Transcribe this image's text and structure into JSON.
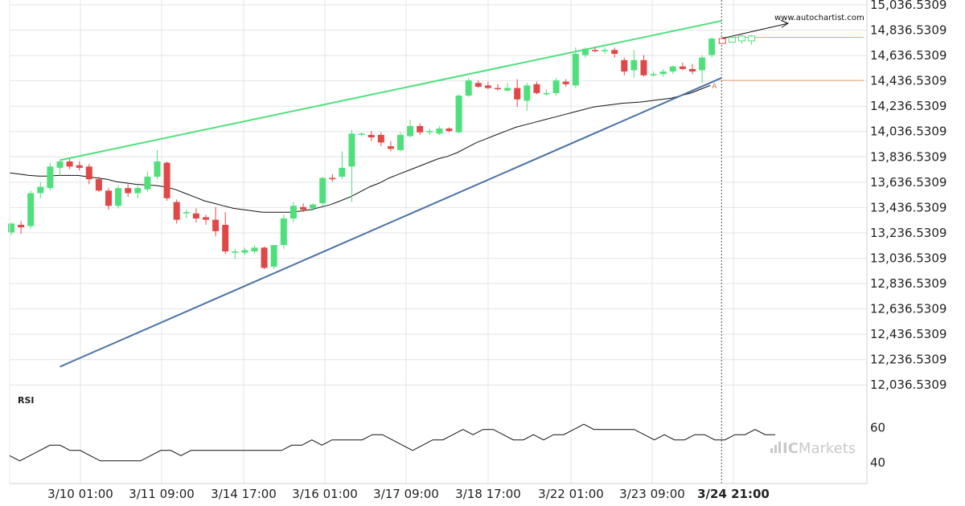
{
  "watermark": "www.autochartist.com",
  "brand": {
    "prefix": "IC",
    "suffix": "Markets"
  },
  "colors": {
    "up": "#4fe07c",
    "down": "#e04848",
    "resistance": "#4fe07c",
    "support": "#4a72a8",
    "ma": "#111111",
    "level": "#f0a070",
    "grid": "#e4e4e4"
  },
  "chart_data": [
    {
      "type": "candlestick",
      "title": "",
      "ylabel": "",
      "yticks": [
        "15,036.5309",
        "14,836.5309",
        "14,636.5309",
        "14,436.5309",
        "14,236.5309",
        "14,036.5309",
        "13,836.5309",
        "13,636.5309",
        "13,436.5309",
        "13,236.5309",
        "13,036.5309",
        "12,836.5309",
        "12,636.5309",
        "12,436.5309",
        "12,236.5309",
        "12,036.5309"
      ],
      "ylim": [
        12000,
        15036.5309
      ],
      "xticks": [
        "3/10 01:00",
        "3/11 09:00",
        "3/14 17:00",
        "3/16 01:00",
        "3/17 09:00",
        "3/18 17:00",
        "3/22 01:00",
        "3/23 09:00",
        "3/24 21:00"
      ],
      "highlighted_xtick": "3/24 21:00",
      "grid": true,
      "candles": [
        {
          "o": 13240,
          "h": 13320,
          "l": 13220,
          "c": 13310
        },
        {
          "o": 13300,
          "h": 13330,
          "l": 13230,
          "c": 13280
        },
        {
          "o": 13290,
          "h": 13570,
          "l": 13270,
          "c": 13550
        },
        {
          "o": 13550,
          "h": 13640,
          "l": 13510,
          "c": 13600
        },
        {
          "o": 13590,
          "h": 13790,
          "l": 13570,
          "c": 13760
        },
        {
          "o": 13750,
          "h": 13810,
          "l": 13690,
          "c": 13800
        },
        {
          "o": 13800,
          "h": 13820,
          "l": 13740,
          "c": 13760
        },
        {
          "o": 13770,
          "h": 13800,
          "l": 13730,
          "c": 13750
        },
        {
          "o": 13760,
          "h": 13780,
          "l": 13620,
          "c": 13660
        },
        {
          "o": 13660,
          "h": 13680,
          "l": 13560,
          "c": 13570
        },
        {
          "o": 13570,
          "h": 13590,
          "l": 13420,
          "c": 13450
        },
        {
          "o": 13450,
          "h": 13610,
          "l": 13430,
          "c": 13590
        },
        {
          "o": 13590,
          "h": 13620,
          "l": 13520,
          "c": 13550
        },
        {
          "o": 13550,
          "h": 13610,
          "l": 13510,
          "c": 13590
        },
        {
          "o": 13580,
          "h": 13720,
          "l": 13560,
          "c": 13680
        },
        {
          "o": 13680,
          "h": 13890,
          "l": 13660,
          "c": 13800
        },
        {
          "o": 13790,
          "h": 13800,
          "l": 13490,
          "c": 13510
        },
        {
          "o": 13480,
          "h": 13500,
          "l": 13310,
          "c": 13340
        },
        {
          "o": 13390,
          "h": 13420,
          "l": 13350,
          "c": 13400
        },
        {
          "o": 13390,
          "h": 13430,
          "l": 13320,
          "c": 13350
        },
        {
          "o": 13360,
          "h": 13380,
          "l": 13300,
          "c": 13340
        },
        {
          "o": 13340,
          "h": 13440,
          "l": 13210,
          "c": 13250
        },
        {
          "o": 13300,
          "h": 13400,
          "l": 13070,
          "c": 13090
        },
        {
          "o": 13080,
          "h": 13110,
          "l": 13030,
          "c": 13090
        },
        {
          "o": 13080,
          "h": 13120,
          "l": 13060,
          "c": 13100
        },
        {
          "o": 13090,
          "h": 13140,
          "l": 13070,
          "c": 13120
        },
        {
          "o": 13120,
          "h": 13130,
          "l": 12950,
          "c": 12960
        },
        {
          "o": 12970,
          "h": 13140,
          "l": 12950,
          "c": 13140
        },
        {
          "o": 13140,
          "h": 13380,
          "l": 13110,
          "c": 13350
        },
        {
          "o": 13350,
          "h": 13480,
          "l": 13320,
          "c": 13450
        },
        {
          "o": 13440,
          "h": 13470,
          "l": 13400,
          "c": 13420
        },
        {
          "o": 13430,
          "h": 13470,
          "l": 13410,
          "c": 13460
        },
        {
          "o": 13470,
          "h": 13680,
          "l": 13450,
          "c": 13670
        },
        {
          "o": 13670,
          "h": 13700,
          "l": 13640,
          "c": 13660
        },
        {
          "o": 13680,
          "h": 13880,
          "l": 13660,
          "c": 13750
        },
        {
          "o": 13760,
          "h": 14050,
          "l": 13480,
          "c": 14020
        },
        {
          "o": 14010,
          "h": 14030,
          "l": 14000,
          "c": 14020
        },
        {
          "o": 14010,
          "h": 14040,
          "l": 13960,
          "c": 13990
        },
        {
          "o": 14010,
          "h": 14030,
          "l": 13920,
          "c": 13950
        },
        {
          "o": 13920,
          "h": 13960,
          "l": 13880,
          "c": 13900
        },
        {
          "o": 13890,
          "h": 14030,
          "l": 13880,
          "c": 14010
        },
        {
          "o": 14000,
          "h": 14130,
          "l": 13990,
          "c": 14080
        },
        {
          "o": 14080,
          "h": 14100,
          "l": 14010,
          "c": 14030
        },
        {
          "o": 14030,
          "h": 14060,
          "l": 14010,
          "c": 14040
        },
        {
          "o": 14020,
          "h": 14080,
          "l": 14010,
          "c": 14060
        },
        {
          "o": 14060,
          "h": 14070,
          "l": 14030,
          "c": 14040
        },
        {
          "o": 14030,
          "h": 14330,
          "l": 14020,
          "c": 14320
        },
        {
          "o": 14320,
          "h": 14460,
          "l": 14310,
          "c": 14440
        },
        {
          "o": 14420,
          "h": 14440,
          "l": 14380,
          "c": 14390
        },
        {
          "o": 14400,
          "h": 14430,
          "l": 14370,
          "c": 14380
        },
        {
          "o": 14380,
          "h": 14410,
          "l": 14360,
          "c": 14370
        },
        {
          "o": 14360,
          "h": 14420,
          "l": 14350,
          "c": 14380
        },
        {
          "o": 14380,
          "h": 14450,
          "l": 14230,
          "c": 14290
        },
        {
          "o": 14280,
          "h": 14420,
          "l": 14200,
          "c": 14400
        },
        {
          "o": 14410,
          "h": 14430,
          "l": 14330,
          "c": 14340
        },
        {
          "o": 14330,
          "h": 14370,
          "l": 14320,
          "c": 14340
        },
        {
          "o": 14340,
          "h": 14460,
          "l": 14320,
          "c": 14440
        },
        {
          "o": 14430,
          "h": 14450,
          "l": 14390,
          "c": 14410
        },
        {
          "o": 14400,
          "h": 14700,
          "l": 14380,
          "c": 14650
        },
        {
          "o": 14640,
          "h": 14700,
          "l": 14620,
          "c": 14690
        },
        {
          "o": 14680,
          "h": 14700,
          "l": 14660,
          "c": 14670
        },
        {
          "o": 14670,
          "h": 14700,
          "l": 14650,
          "c": 14680
        },
        {
          "o": 14680,
          "h": 14700,
          "l": 14620,
          "c": 14650
        },
        {
          "o": 14600,
          "h": 14620,
          "l": 14480,
          "c": 14510
        },
        {
          "o": 14520,
          "h": 14680,
          "l": 14460,
          "c": 14600
        },
        {
          "o": 14600,
          "h": 14640,
          "l": 14470,
          "c": 14480
        },
        {
          "o": 14480,
          "h": 14510,
          "l": 14470,
          "c": 14490
        },
        {
          "o": 14490,
          "h": 14530,
          "l": 14470,
          "c": 14510
        },
        {
          "o": 14510,
          "h": 14560,
          "l": 14490,
          "c": 14550
        },
        {
          "o": 14550,
          "h": 14580,
          "l": 14520,
          "c": 14530
        },
        {
          "o": 14530,
          "h": 14570,
          "l": 14490,
          "c": 14510
        },
        {
          "o": 14520,
          "h": 14640,
          "l": 14420,
          "c": 14620
        },
        {
          "o": 14640,
          "h": 14780,
          "l": 14620,
          "c": 14770
        }
      ],
      "projected_candles": [
        {
          "o": 14750,
          "h": 14780,
          "l": 14740,
          "c": 14770
        },
        {
          "o": 14760,
          "h": 14790,
          "l": 14740,
          "c": 14780
        },
        {
          "o": 14780,
          "h": 14800,
          "l": 14730,
          "c": 14790
        },
        {
          "o": 14790,
          "h": 14800,
          "l": 14720,
          "c": 14760
        }
      ],
      "moving_average": [
        13710,
        13700,
        13690,
        13685,
        13685,
        13690,
        13690,
        13690,
        13680,
        13670,
        13660,
        13640,
        13630,
        13620,
        13615,
        13610,
        13600,
        13580,
        13550,
        13520,
        13490,
        13470,
        13450,
        13430,
        13420,
        13410,
        13400,
        13400,
        13400,
        13400,
        13410,
        13420,
        13440,
        13460,
        13490,
        13520,
        13560,
        13600,
        13630,
        13670,
        13700,
        13730,
        13760,
        13790,
        13820,
        13840,
        13870,
        13910,
        13950,
        13980,
        14010,
        14040,
        14070,
        14090,
        14110,
        14130,
        14150,
        14170,
        14190,
        14210,
        14230,
        14240,
        14250,
        14260,
        14265,
        14270,
        14280,
        14290,
        14300,
        14320,
        14340,
        14370,
        14400
      ],
      "resistance_line": {
        "x0": 5,
        "y0": 13810,
        "x1": 73,
        "y1": 14910
      },
      "support_line": {
        "x0": 5,
        "y0": 12180,
        "x1": 73,
        "y1": 14460
      },
      "forecast_line": {
        "x0": 73,
        "y0": 14770,
        "x1": 79,
        "y1": 14890
      },
      "level_upper": 14780,
      "level_lower": 14440,
      "marker_label": "A",
      "vline_index": 73
    },
    {
      "type": "line",
      "title": "",
      "label": "RSI",
      "yticks": [
        "60",
        "40"
      ],
      "ylim": [
        28,
        75
      ],
      "values": [
        44,
        41,
        44,
        47,
        50,
        50,
        47,
        47,
        44,
        41,
        41,
        41,
        41,
        41,
        44,
        47,
        47,
        44,
        47,
        47,
        47,
        47,
        47,
        47,
        47,
        47,
        47,
        47,
        50,
        50,
        53,
        50,
        53,
        53,
        53,
        53,
        56,
        56,
        53,
        50,
        47,
        50,
        53,
        53,
        56,
        59,
        56,
        59,
        59,
        56,
        53,
        53,
        56,
        53,
        56,
        56,
        59,
        62,
        59,
        59,
        59,
        59,
        59,
        56,
        53,
        56,
        53,
        53,
        56,
        56,
        53,
        53,
        56,
        56,
        59,
        56,
        56
      ]
    }
  ]
}
